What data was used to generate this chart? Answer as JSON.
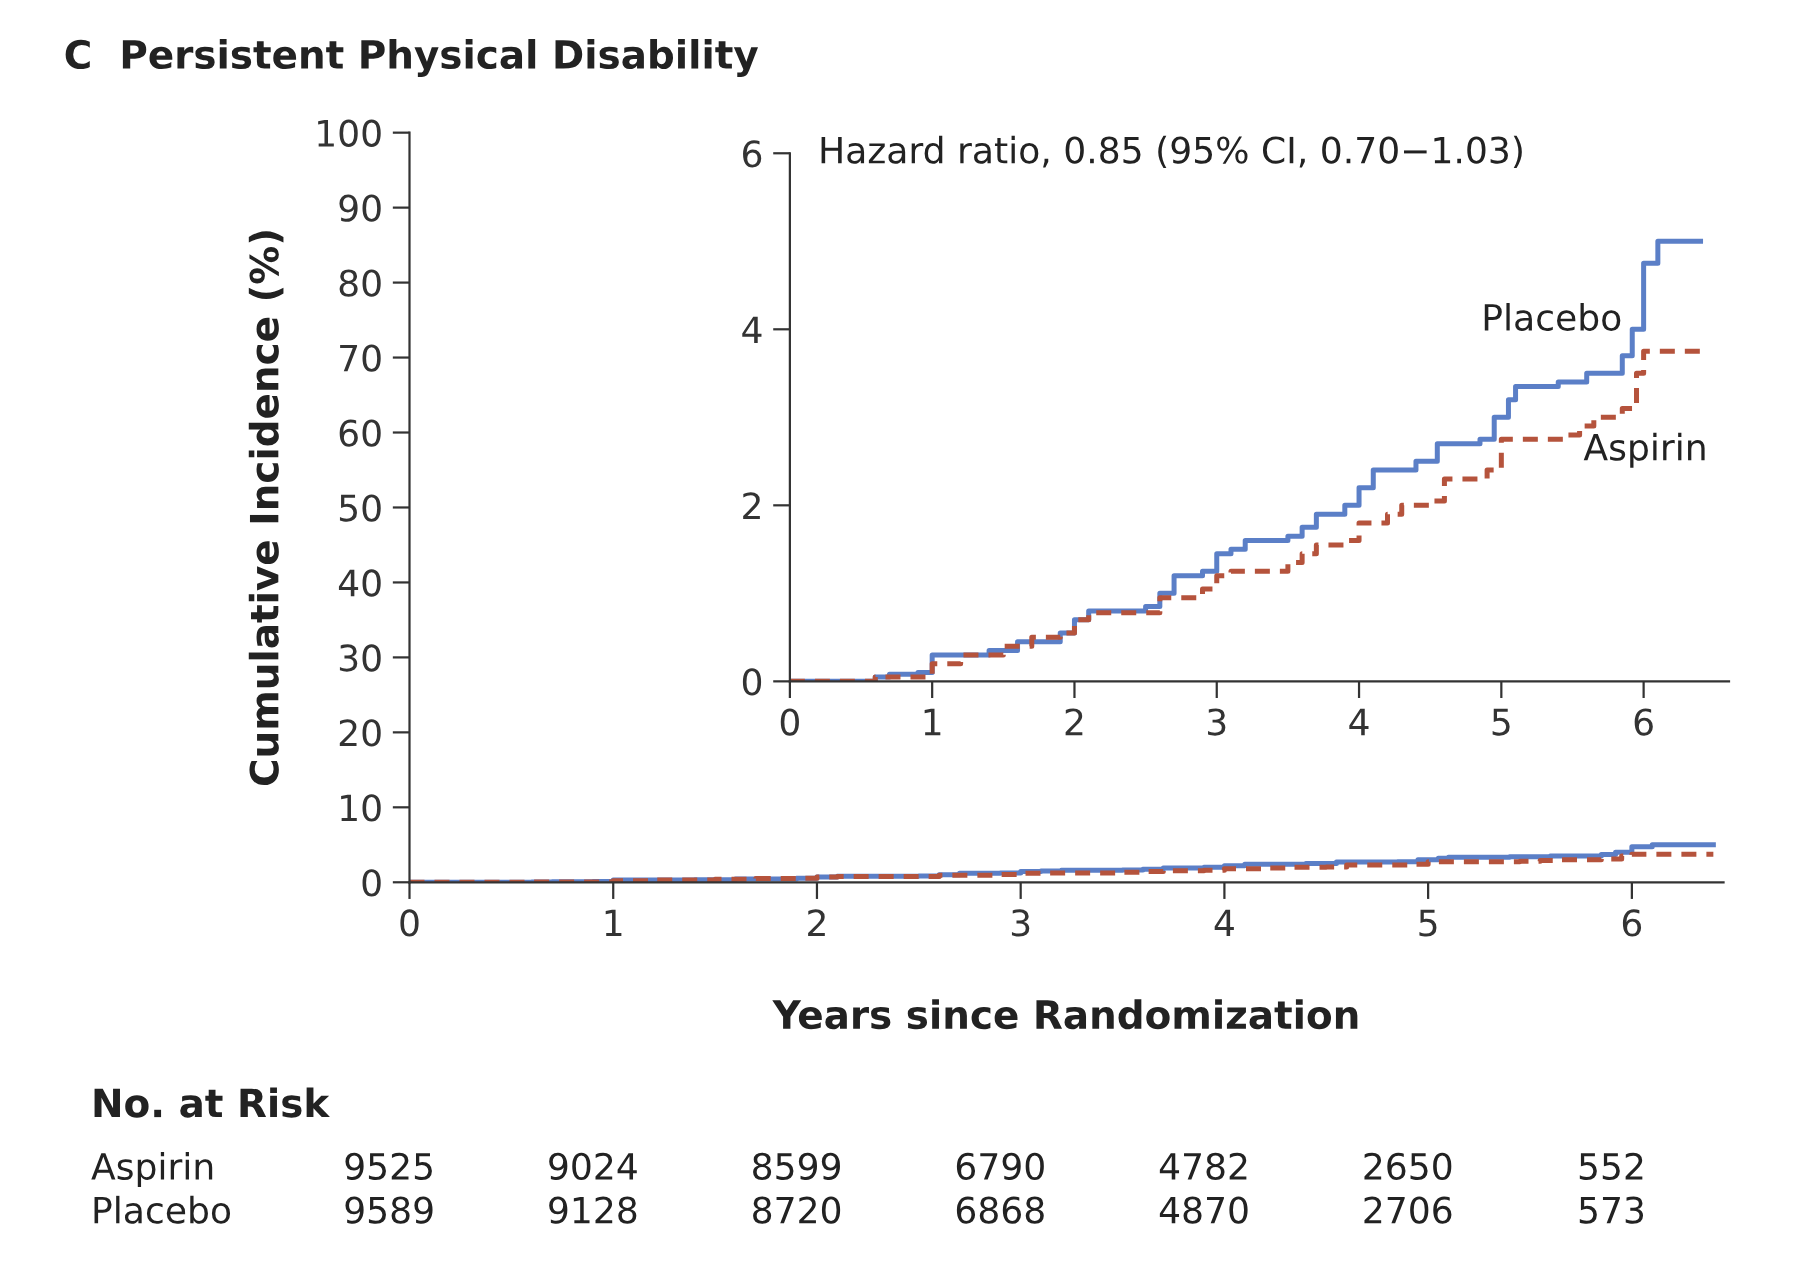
{
  "chart_data": [
    {
      "type": "step",
      "title": "C  Persistent Physical Disability",
      "xlabel": "Years since Randomization",
      "ylabel": "Cumulative Incidence (%)",
      "xlim": [
        0,
        6.45
      ],
      "ylim": [
        0,
        100
      ],
      "xticks": [
        0,
        1,
        2,
        3,
        4,
        5,
        6
      ],
      "yticks": [
        0,
        10,
        20,
        30,
        40,
        50,
        60,
        70,
        80,
        90,
        100
      ],
      "grid": false,
      "legend": false,
      "series": [
        {
          "color": "#5b7fc7",
          "line_style": "solid",
          "x": [
            0,
            0.5,
            0.6,
            0.7,
            0.9,
            1.0,
            1.4,
            1.6,
            1.9,
            2.0,
            2.1,
            2.5,
            2.6,
            2.7,
            2.9,
            3.0,
            3.1,
            3.2,
            3.5,
            3.6,
            3.7,
            3.9,
            4.0,
            4.1,
            4.4,
            4.55,
            4.85,
            4.95,
            5.05,
            5.1,
            5.4,
            5.6,
            5.85,
            5.92,
            6.0,
            6.1,
            6.4
          ],
          "values": [
            0,
            0,
            0.05,
            0.08,
            0.1,
            0.3,
            0.35,
            0.45,
            0.55,
            0.7,
            0.8,
            0.85,
            1.0,
            1.2,
            1.25,
            1.45,
            1.5,
            1.6,
            1.65,
            1.75,
            1.9,
            2.0,
            2.2,
            2.4,
            2.5,
            2.7,
            2.75,
            3.0,
            3.2,
            3.35,
            3.4,
            3.5,
            3.7,
            4.0,
            4.75,
            5.0,
            5.0
          ]
        },
        {
          "color": "#b5533c",
          "line_style": "dashed",
          "x": [
            0,
            0.55,
            0.6,
            0.9,
            1.0,
            1.2,
            1.5,
            1.7,
            1.9,
            2.0,
            2.1,
            2.6,
            2.9,
            3.0,
            3.1,
            3.5,
            3.6,
            3.7,
            3.9,
            4.0,
            4.2,
            4.3,
            4.5,
            4.6,
            4.9,
            5.0,
            5.45,
            5.55,
            5.65,
            5.85,
            5.95,
            6.0,
            6.4
          ],
          "values": [
            0,
            0,
            0.05,
            0.05,
            0.2,
            0.3,
            0.4,
            0.5,
            0.55,
            0.7,
            0.78,
            0.95,
            1.05,
            1.2,
            1.25,
            1.35,
            1.45,
            1.55,
            1.6,
            1.8,
            1.9,
            2.0,
            2.05,
            2.3,
            2.4,
            2.75,
            2.8,
            2.9,
            3.0,
            3.1,
            3.5,
            3.75,
            3.75
          ]
        }
      ],
      "annotations": [
        "No. at Risk",
        "Aspirin",
        "9525",
        "9024",
        "8599",
        "6790",
        "4782",
        "2650",
        "552",
        "Placebo",
        "9589",
        "9128",
        "8720",
        "6868",
        "4870",
        "2706",
        "573"
      ]
    },
    {
      "type": "step",
      "xlim": [
        0,
        6.6
      ],
      "ylim": [
        0,
        6
      ],
      "xticks": [
        0,
        1,
        2,
        3,
        4,
        5,
        6
      ],
      "yticks": [
        0,
        2,
        4,
        6
      ],
      "grid": false,
      "legend": false,
      "annotations": [
        "Hazard ratio, 0.85 (95% CI, 0.70−1.03)"
      ],
      "series": [
        {
          "name": "Placebo",
          "color": "#5b7fc7",
          "line_style": "solid",
          "x": [
            0,
            0.5,
            0.6,
            0.7,
            0.9,
            1.0,
            1.4,
            1.6,
            1.9,
            2.0,
            2.1,
            2.5,
            2.6,
            2.7,
            2.9,
            3.0,
            3.1,
            3.2,
            3.5,
            3.6,
            3.7,
            3.9,
            4.0,
            4.1,
            4.4,
            4.55,
            4.85,
            4.95,
            5.05,
            5.1,
            5.4,
            5.6,
            5.85,
            5.92,
            6.0,
            6.1,
            6.4
          ],
          "values": [
            0,
            0,
            0.05,
            0.08,
            0.1,
            0.3,
            0.35,
            0.45,
            0.55,
            0.7,
            0.8,
            0.85,
            1.0,
            1.2,
            1.25,
            1.45,
            1.5,
            1.6,
            1.65,
            1.75,
            1.9,
            2.0,
            2.2,
            2.4,
            2.5,
            2.7,
            2.75,
            3.0,
            3.2,
            3.35,
            3.4,
            3.5,
            3.7,
            4.0,
            4.75,
            5.0,
            5.0
          ]
        },
        {
          "name": "Aspirin",
          "color": "#b5533c",
          "line_style": "dashed",
          "x": [
            0,
            0.55,
            0.6,
            0.9,
            1.0,
            1.2,
            1.5,
            1.7,
            1.9,
            2.0,
            2.1,
            2.6,
            2.9,
            3.0,
            3.1,
            3.5,
            3.6,
            3.7,
            3.9,
            4.0,
            4.2,
            4.3,
            4.5,
            4.6,
            4.9,
            5.0,
            5.45,
            5.55,
            5.65,
            5.85,
            5.95,
            6.0,
            6.4
          ],
          "values": [
            0,
            0,
            0.05,
            0.05,
            0.2,
            0.3,
            0.4,
            0.5,
            0.55,
            0.7,
            0.78,
            0.95,
            1.05,
            1.2,
            1.25,
            1.35,
            1.45,
            1.55,
            1.6,
            1.8,
            1.9,
            2.0,
            2.05,
            2.3,
            2.4,
            2.75,
            2.8,
            2.9,
            3.0,
            3.1,
            3.5,
            3.75,
            3.75
          ]
        }
      ]
    }
  ]
}
